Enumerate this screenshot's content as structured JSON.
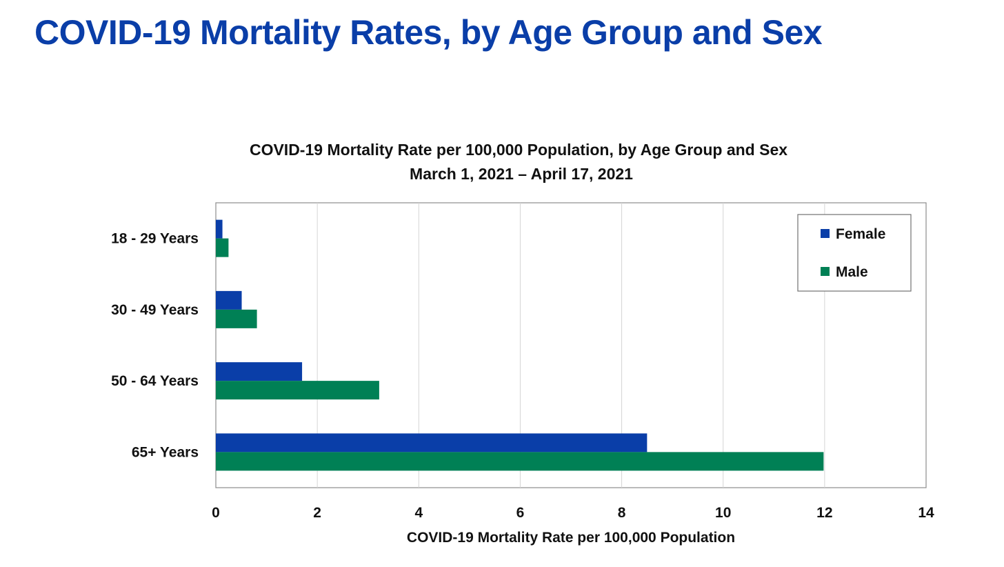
{
  "slide": {
    "title": "COVID-19 Mortality Rates, by Age Group and Sex"
  },
  "chart_data": {
    "type": "bar",
    "orientation": "horizontal",
    "title": "COVID-19 Mortality Rate per 100,000 Population, by Age Group and Sex",
    "subtitle": "March 1, 2021 – April 17, 2021",
    "xlabel": "COVID-19 Mortality Rate per 100,000 Population",
    "ylabel": "",
    "categories": [
      "18 - 29 Years",
      "30 - 49 Years",
      "50 - 64 Years",
      "65+ Years"
    ],
    "series": [
      {
        "name": "Female",
        "color": "#0a3ea8",
        "values": [
          0.13,
          0.51,
          1.7,
          8.5
        ]
      },
      {
        "name": "Male",
        "color": "#008055",
        "values": [
          0.25,
          0.81,
          3.22,
          11.98
        ]
      }
    ],
    "xlim": [
      0,
      14
    ],
    "xticks": [
      0,
      2,
      4,
      6,
      8,
      10,
      12,
      14
    ],
    "grid": "vertical",
    "legend_position": "top-right"
  }
}
